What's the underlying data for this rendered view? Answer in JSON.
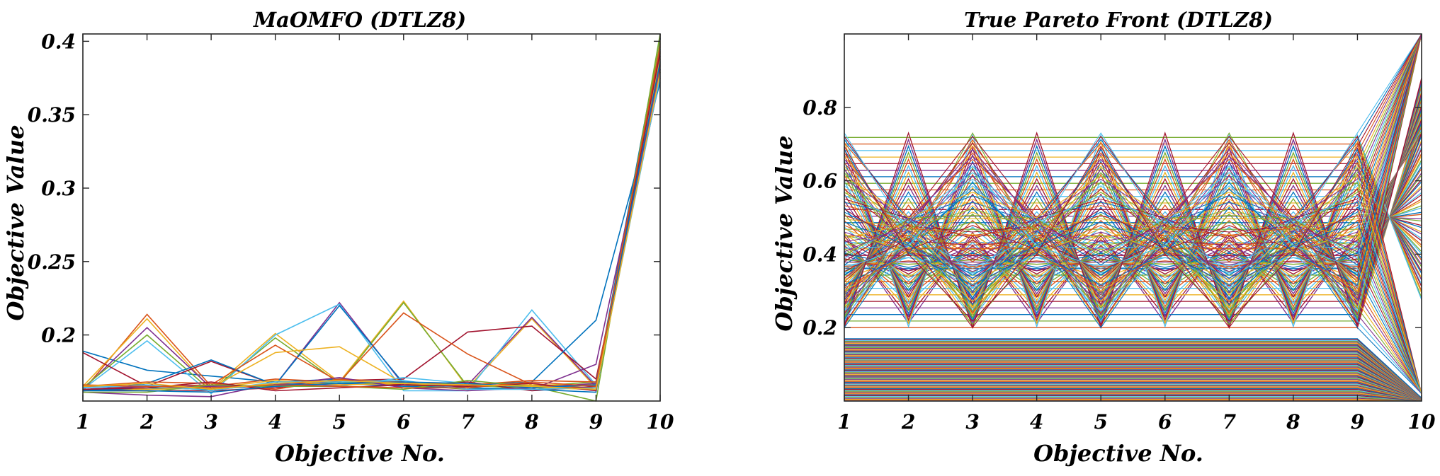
{
  "chart_data": [
    {
      "type": "line",
      "title": "MaOMFO (DTLZ8)",
      "xlabel": "Objective No.",
      "ylabel": "Objective Value",
      "x": [
        1,
        2,
        3,
        4,
        5,
        6,
        7,
        8,
        9,
        10
      ],
      "xticks": [
        "1",
        "2",
        "3",
        "4",
        "5",
        "6",
        "7",
        "8",
        "9",
        "10"
      ],
      "yticks": [
        "0.2",
        "0.25",
        "0.3",
        "0.35",
        "0.4"
      ],
      "ytick_values": [
        0.2,
        0.25,
        0.3,
        0.35,
        0.4
      ],
      "xlim": [
        1,
        10
      ],
      "ylim": [
        0.155,
        0.405
      ],
      "grid": false,
      "series_count": 24,
      "series": [
        {
          "values": [
            0.189,
            0.176,
            0.172,
            0.168,
            0.17,
            0.167,
            0.166,
            0.165,
            0.166,
            0.402
          ]
        },
        {
          "values": [
            0.162,
            0.214,
            0.165,
            0.17,
            0.168,
            0.166,
            0.165,
            0.167,
            0.163,
            0.398
          ]
        },
        {
          "values": [
            0.165,
            0.211,
            0.163,
            0.201,
            0.168,
            0.223,
            0.164,
            0.211,
            0.164,
            0.392
          ]
        },
        {
          "values": [
            0.163,
            0.205,
            0.164,
            0.166,
            0.222,
            0.166,
            0.166,
            0.212,
            0.165,
            0.388
          ]
        },
        {
          "values": [
            0.164,
            0.2,
            0.162,
            0.198,
            0.167,
            0.222,
            0.165,
            0.165,
            0.168,
            0.385
          ]
        },
        {
          "values": [
            0.163,
            0.196,
            0.16,
            0.2,
            0.221,
            0.162,
            0.162,
            0.217,
            0.166,
            0.381
          ]
        },
        {
          "values": [
            0.188,
            0.165,
            0.182,
            0.166,
            0.169,
            0.17,
            0.202,
            0.206,
            0.17,
            0.375
          ]
        },
        {
          "values": [
            0.162,
            0.167,
            0.183,
            0.166,
            0.22,
            0.167,
            0.166,
            0.168,
            0.21,
            0.372
          ]
        },
        {
          "values": [
            0.165,
            0.165,
            0.166,
            0.193,
            0.168,
            0.215,
            0.187,
            0.166,
            0.164,
            0.396
          ]
        },
        {
          "values": [
            0.163,
            0.163,
            0.164,
            0.188,
            0.192,
            0.167,
            0.163,
            0.164,
            0.163,
            0.4
          ]
        },
        {
          "values": [
            0.161,
            0.159,
            0.158,
            0.167,
            0.166,
            0.168,
            0.164,
            0.163,
            0.18,
            0.384
          ]
        },
        {
          "values": [
            0.166,
            0.163,
            0.165,
            0.165,
            0.168,
            0.166,
            0.163,
            0.165,
            0.155,
            0.405
          ]
        },
        {
          "values": [
            0.164,
            0.166,
            0.163,
            0.167,
            0.165,
            0.171,
            0.167,
            0.164,
            0.166,
            0.379
          ]
        },
        {
          "values": [
            0.163,
            0.162,
            0.162,
            0.164,
            0.169,
            0.166,
            0.168,
            0.162,
            0.165,
            0.39
          ]
        },
        {
          "values": [
            0.162,
            0.164,
            0.163,
            0.166,
            0.167,
            0.165,
            0.164,
            0.163,
            0.161,
            0.395
          ]
        },
        {
          "values": [
            0.165,
            0.168,
            0.167,
            0.163,
            0.17,
            0.168,
            0.166,
            0.169,
            0.168,
            0.383
          ]
        },
        {
          "values": [
            0.166,
            0.163,
            0.164,
            0.169,
            0.166,
            0.167,
            0.165,
            0.166,
            0.166,
            0.388
          ]
        },
        {
          "values": [
            0.163,
            0.165,
            0.165,
            0.166,
            0.171,
            0.164,
            0.162,
            0.164,
            0.167,
            0.381
          ]
        },
        {
          "values": [
            0.161,
            0.161,
            0.166,
            0.165,
            0.165,
            0.163,
            0.169,
            0.165,
            0.163,
            0.399
          ]
        },
        {
          "values": [
            0.164,
            0.166,
            0.162,
            0.168,
            0.168,
            0.169,
            0.163,
            0.163,
            0.164,
            0.376
          ]
        },
        {
          "values": [
            0.163,
            0.164,
            0.168,
            0.162,
            0.164,
            0.166,
            0.165,
            0.167,
            0.162,
            0.393
          ]
        },
        {
          "values": [
            0.162,
            0.162,
            0.161,
            0.165,
            0.167,
            0.168,
            0.167,
            0.164,
            0.166,
            0.386
          ]
        },
        {
          "values": [
            0.166,
            0.165,
            0.164,
            0.166,
            0.165,
            0.164,
            0.164,
            0.168,
            0.165,
            0.397
          ]
        },
        {
          "values": [
            0.165,
            0.167,
            0.163,
            0.167,
            0.169,
            0.167,
            0.166,
            0.165,
            0.163,
            0.379
          ]
        }
      ]
    },
    {
      "type": "line",
      "title": "True Pareto Front (DTLZ8)",
      "xlabel": "Objective No.",
      "ylabel": "Objective Value",
      "x": [
        1,
        2,
        3,
        4,
        5,
        6,
        7,
        8,
        9,
        10
      ],
      "xticks": [
        "1",
        "2",
        "3",
        "4",
        "5",
        "6",
        "7",
        "8",
        "9",
        "10"
      ],
      "yticks": [
        "0.2",
        "0.4",
        "0.6",
        "0.8"
      ],
      "ytick_values": [
        0.2,
        0.4,
        0.6,
        0.8
      ],
      "xlim": [
        1,
        10
      ],
      "ylim": [
        0,
        1
      ],
      "grid": false,
      "front": {
        "band_max": 0.17,
        "max_value": 0.73,
        "min_value": 0.2,
        "f10_max": 1.0
      }
    }
  ],
  "colors": [
    "#0072BD",
    "#D95319",
    "#EDB120",
    "#7E2F8E",
    "#77AC30",
    "#4DBEEE",
    "#A2142F"
  ]
}
